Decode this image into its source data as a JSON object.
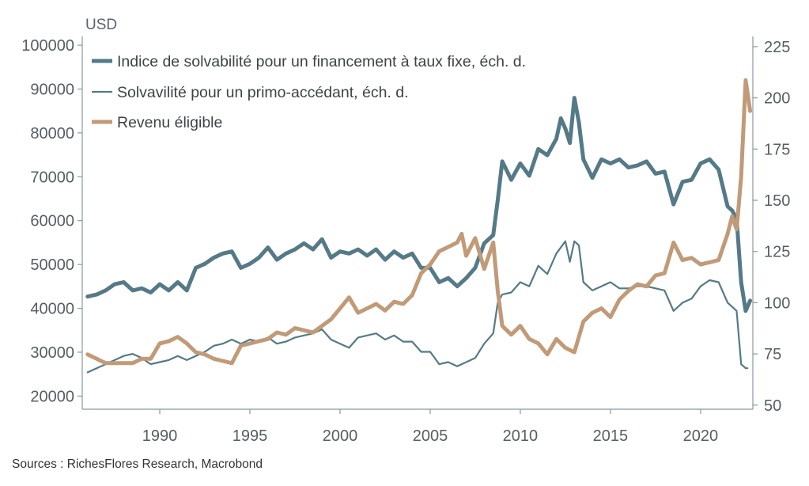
{
  "chart_data": {
    "type": "line",
    "unit_label": "USD",
    "source": "Sources : RichesFlores Research, Macrobond",
    "x_range": [
      1985.7,
      2022.9
    ],
    "x_ticks": [
      1990,
      1995,
      2000,
      2005,
      2010,
      2015,
      2020
    ],
    "left_axis": {
      "range": [
        17000,
        102000
      ],
      "ticks": [
        20000,
        30000,
        40000,
        50000,
        60000,
        70000,
        80000,
        90000,
        100000
      ]
    },
    "right_axis": {
      "range": [
        48,
        230
      ],
      "ticks": [
        50,
        75,
        100,
        125,
        150,
        175,
        200,
        225
      ]
    },
    "grid": false,
    "legend_position": "top-left",
    "series": [
      {
        "name": "Indice de solvabilité pour un financement à taux fixe, éch. d.",
        "axis": "right",
        "color": "#557a87",
        "width": 5,
        "points": [
          [
            1986.0,
            103
          ],
          [
            1986.5,
            104
          ],
          [
            1987.0,
            106
          ],
          [
            1987.5,
            109
          ],
          [
            1988.0,
            110
          ],
          [
            1988.5,
            106
          ],
          [
            1989.0,
            107
          ],
          [
            1989.5,
            105
          ],
          [
            1990.0,
            109
          ],
          [
            1990.5,
            106
          ],
          [
            1991.0,
            110
          ],
          [
            1991.5,
            106
          ],
          [
            1992.0,
            117
          ],
          [
            1992.5,
            119
          ],
          [
            1993.0,
            122
          ],
          [
            1993.5,
            124
          ],
          [
            1994.0,
            125
          ],
          [
            1994.5,
            117
          ],
          [
            1995.0,
            119
          ],
          [
            1995.5,
            122
          ],
          [
            1996.0,
            127
          ],
          [
            1996.5,
            121
          ],
          [
            1997.0,
            124
          ],
          [
            1997.5,
            126
          ],
          [
            1998.0,
            129
          ],
          [
            1998.5,
            126
          ],
          [
            1999.0,
            131
          ],
          [
            1999.5,
            122
          ],
          [
            2000.0,
            125
          ],
          [
            2000.5,
            124
          ],
          [
            2001.0,
            126
          ],
          [
            2001.5,
            123
          ],
          [
            2002.0,
            126
          ],
          [
            2002.5,
            121
          ],
          [
            2003.0,
            125
          ],
          [
            2003.5,
            122
          ],
          [
            2004.0,
            124
          ],
          [
            2004.5,
            117
          ],
          [
            2005.0,
            117
          ],
          [
            2005.5,
            110
          ],
          [
            2006.0,
            112
          ],
          [
            2006.5,
            108
          ],
          [
            2007.0,
            112
          ],
          [
            2007.5,
            117
          ],
          [
            2008.0,
            129
          ],
          [
            2008.5,
            133
          ],
          [
            2008.75,
            150
          ],
          [
            2009.0,
            169
          ],
          [
            2009.5,
            160
          ],
          [
            2010.0,
            168
          ],
          [
            2010.5,
            162
          ],
          [
            2011.0,
            175
          ],
          [
            2011.5,
            172
          ],
          [
            2012.0,
            180
          ],
          [
            2012.25,
            190
          ],
          [
            2012.5,
            185
          ],
          [
            2012.75,
            178
          ],
          [
            2013.0,
            200
          ],
          [
            2013.25,
            188
          ],
          [
            2013.5,
            170
          ],
          [
            2014.0,
            161
          ],
          [
            2014.5,
            170
          ],
          [
            2015.0,
            168
          ],
          [
            2015.5,
            170
          ],
          [
            2016.0,
            166
          ],
          [
            2016.5,
            167
          ],
          [
            2017.0,
            169
          ],
          [
            2017.5,
            163
          ],
          [
            2018.0,
            164
          ],
          [
            2018.5,
            148
          ],
          [
            2019.0,
            159
          ],
          [
            2019.5,
            160
          ],
          [
            2020.0,
            168
          ],
          [
            2020.5,
            170
          ],
          [
            2021.0,
            165
          ],
          [
            2021.5,
            147
          ],
          [
            2021.75,
            145
          ],
          [
            2022.0,
            141
          ],
          [
            2022.25,
            110
          ],
          [
            2022.5,
            96
          ],
          [
            2022.75,
            101
          ]
        ]
      },
      {
        "name": "Solvavilité pour un primo-accédant, éch. d.",
        "axis": "right",
        "color": "#557a87",
        "width": 2.2,
        "points": [
          [
            1986.0,
            66
          ],
          [
            1986.5,
            68
          ],
          [
            1987.0,
            70
          ],
          [
            1987.5,
            72
          ],
          [
            1988.0,
            74
          ],
          [
            1988.5,
            75
          ],
          [
            1989.0,
            73
          ],
          [
            1989.5,
            70
          ],
          [
            1990.0,
            71
          ],
          [
            1990.5,
            72
          ],
          [
            1991.0,
            74
          ],
          [
            1991.5,
            72
          ],
          [
            1992.0,
            74
          ],
          [
            1992.5,
            76
          ],
          [
            1993.0,
            79
          ],
          [
            1993.5,
            80
          ],
          [
            1994.0,
            82
          ],
          [
            1994.5,
            80
          ],
          [
            1995.0,
            82
          ],
          [
            1995.5,
            81
          ],
          [
            1996.0,
            83
          ],
          [
            1996.5,
            80
          ],
          [
            1997.0,
            81
          ],
          [
            1997.5,
            83
          ],
          [
            1998.0,
            84
          ],
          [
            1998.5,
            85
          ],
          [
            1999.0,
            87
          ],
          [
            1999.5,
            82
          ],
          [
            2000.0,
            80
          ],
          [
            2000.5,
            78
          ],
          [
            2001.0,
            83
          ],
          [
            2001.5,
            84
          ],
          [
            2002.0,
            85
          ],
          [
            2002.5,
            82
          ],
          [
            2003.0,
            84
          ],
          [
            2003.5,
            81
          ],
          [
            2004.0,
            81
          ],
          [
            2004.5,
            76
          ],
          [
            2005.0,
            76
          ],
          [
            2005.5,
            70
          ],
          [
            2006.0,
            71
          ],
          [
            2006.5,
            69
          ],
          [
            2007.0,
            71
          ],
          [
            2007.5,
            73
          ],
          [
            2008.0,
            80
          ],
          [
            2008.5,
            85
          ],
          [
            2008.75,
            100
          ],
          [
            2009.0,
            104
          ],
          [
            2009.5,
            105
          ],
          [
            2010.0,
            110
          ],
          [
            2010.5,
            108
          ],
          [
            2011.0,
            118
          ],
          [
            2011.5,
            114
          ],
          [
            2012.0,
            124
          ],
          [
            2012.5,
            130
          ],
          [
            2012.75,
            120
          ],
          [
            2013.0,
            130
          ],
          [
            2013.25,
            128
          ],
          [
            2013.5,
            110
          ],
          [
            2014.0,
            106
          ],
          [
            2014.5,
            108
          ],
          [
            2015.0,
            110
          ],
          [
            2015.5,
            107
          ],
          [
            2016.0,
            107
          ],
          [
            2016.5,
            108
          ],
          [
            2017.0,
            108
          ],
          [
            2017.5,
            107
          ],
          [
            2018.0,
            106
          ],
          [
            2018.5,
            96
          ],
          [
            2019.0,
            100
          ],
          [
            2019.5,
            102
          ],
          [
            2020.0,
            108
          ],
          [
            2020.5,
            111
          ],
          [
            2021.0,
            110
          ],
          [
            2021.5,
            100
          ],
          [
            2021.75,
            98
          ],
          [
            2022.0,
            96
          ],
          [
            2022.25,
            70
          ],
          [
            2022.5,
            68
          ],
          [
            2022.6,
            68
          ]
        ]
      },
      {
        "name": "Revenu éligible",
        "axis": "left",
        "color": "#c19a78",
        "width": 5,
        "points": [
          [
            1986.0,
            29500
          ],
          [
            1986.5,
            28500
          ],
          [
            1987.0,
            27500
          ],
          [
            1987.5,
            27500
          ],
          [
            1988.0,
            27500
          ],
          [
            1988.5,
            27500
          ],
          [
            1989.0,
            28500
          ],
          [
            1989.5,
            28500
          ],
          [
            1990.0,
            32000
          ],
          [
            1990.5,
            32500
          ],
          [
            1991.0,
            33500
          ],
          [
            1991.5,
            32000
          ],
          [
            1992.0,
            30000
          ],
          [
            1992.5,
            29500
          ],
          [
            1993.0,
            28500
          ],
          [
            1993.5,
            28000
          ],
          [
            1994.0,
            27500
          ],
          [
            1994.5,
            31500
          ],
          [
            1995.0,
            32000
          ],
          [
            1995.5,
            32500
          ],
          [
            1996.0,
            33000
          ],
          [
            1996.5,
            34500
          ],
          [
            1997.0,
            34000
          ],
          [
            1997.5,
            35500
          ],
          [
            1998.0,
            35000
          ],
          [
            1998.5,
            34500
          ],
          [
            1999.0,
            36000
          ],
          [
            1999.5,
            37500
          ],
          [
            2000.0,
            40000
          ],
          [
            2000.5,
            42500
          ],
          [
            2001.0,
            39000
          ],
          [
            2001.5,
            40000
          ],
          [
            2002.0,
            41000
          ],
          [
            2002.5,
            39500
          ],
          [
            2003.0,
            41500
          ],
          [
            2003.5,
            41000
          ],
          [
            2004.0,
            43000
          ],
          [
            2004.5,
            48000
          ],
          [
            2005.0,
            50000
          ],
          [
            2005.5,
            53000
          ],
          [
            2006.0,
            54000
          ],
          [
            2006.5,
            55000
          ],
          [
            2006.75,
            57000
          ],
          [
            2007.0,
            52000
          ],
          [
            2007.5,
            56000
          ],
          [
            2008.0,
            49000
          ],
          [
            2008.5,
            55000
          ],
          [
            2008.75,
            44000
          ],
          [
            2009.0,
            36000
          ],
          [
            2009.5,
            34000
          ],
          [
            2010.0,
            36000
          ],
          [
            2010.5,
            33000
          ],
          [
            2011.0,
            32000
          ],
          [
            2011.5,
            29500
          ],
          [
            2012.0,
            33000
          ],
          [
            2012.5,
            31000
          ],
          [
            2013.0,
            30000
          ],
          [
            2013.5,
            37000
          ],
          [
            2014.0,
            39000
          ],
          [
            2014.5,
            40000
          ],
          [
            2015.0,
            38000
          ],
          [
            2015.5,
            42000
          ],
          [
            2016.0,
            44000
          ],
          [
            2016.5,
            45500
          ],
          [
            2017.0,
            45000
          ],
          [
            2017.5,
            47500
          ],
          [
            2018.0,
            48000
          ],
          [
            2018.5,
            55000
          ],
          [
            2019.0,
            51000
          ],
          [
            2019.5,
            51500
          ],
          [
            2020.0,
            50000
          ],
          [
            2020.5,
            50500
          ],
          [
            2021.0,
            51000
          ],
          [
            2021.5,
            57000
          ],
          [
            2021.75,
            61000
          ],
          [
            2022.0,
            58000
          ],
          [
            2022.25,
            70000
          ],
          [
            2022.5,
            92000
          ],
          [
            2022.75,
            85000
          ]
        ]
      }
    ]
  }
}
